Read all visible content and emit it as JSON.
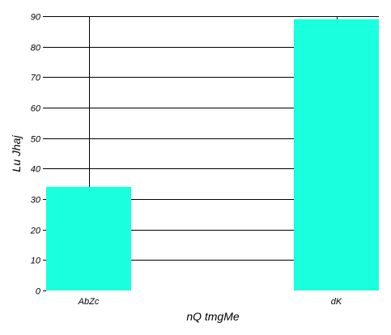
{
  "chart_data": {
    "type": "bar",
    "categories": [
      "AbZc",
      "dK"
    ],
    "values": [
      34,
      89
    ],
    "title": "",
    "xlabel": "nQ tmgMe",
    "ylabel": "Lu Jhaj",
    "ylim": [
      0,
      90
    ],
    "yticks": [
      0,
      10,
      20,
      30,
      40,
      50,
      60,
      70,
      80,
      90
    ],
    "grid": true,
    "legend": "none",
    "bar_color": "#1affdd",
    "grid_color": "#000000"
  }
}
